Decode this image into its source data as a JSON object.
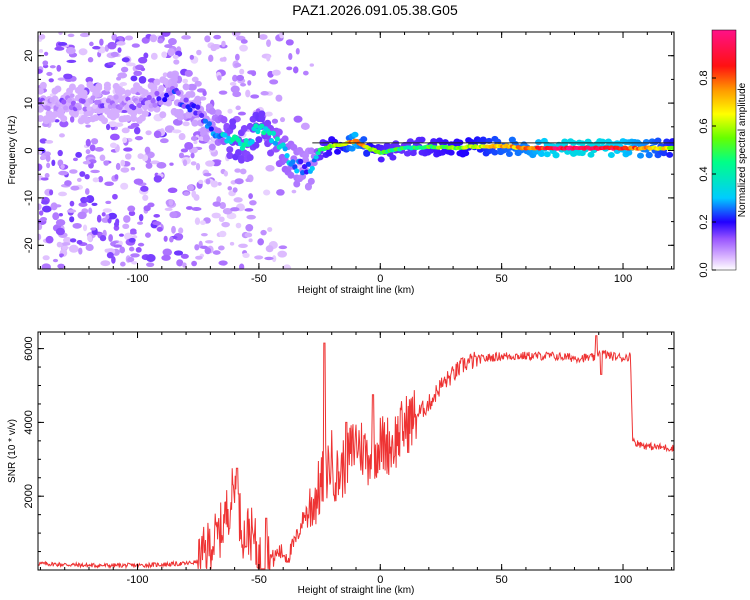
{
  "title": "PAZ1.2026.091.05.38.G05",
  "chart_data": [
    {
      "type": "heatmap",
      "xlabel": "Height of straight line (km)",
      "ylabel": "Frequency (Hz)",
      "xlim": [
        -141,
        121
      ],
      "ylim": [
        -25,
        25
      ],
      "xticks": [
        -100,
        -50,
        0,
        50,
        100
      ],
      "yticks": [
        -20,
        -10,
        0,
        10,
        20
      ],
      "colorbar": {
        "label": "Normalized spectral amplitude",
        "range": [
          0,
          1
        ],
        "ticks": [
          "0.0",
          "0.2",
          "0.4",
          "0.6",
          "0.8"
        ]
      },
      "line": {
        "name": "reference frequency",
        "x": [
          -28,
          121
        ],
        "y": [
          1.6,
          1.6
        ]
      },
      "ridge": {
        "x": [
          -100,
          -90,
          -85,
          -80,
          -75,
          -70,
          -65,
          -60,
          -55,
          -50,
          -45,
          -40,
          -35,
          -30,
          -27,
          -25,
          -20,
          -15,
          -10,
          -5,
          0,
          10,
          20,
          30,
          40,
          50,
          60,
          70,
          80,
          90,
          100,
          110,
          120
        ],
        "freq": [
          10,
          11,
          12,
          10,
          8,
          5,
          3,
          2,
          1,
          5,
          3,
          0,
          -3,
          -4,
          -2,
          0,
          1,
          1.4,
          2,
          0.5,
          -0.5,
          0.5,
          0.8,
          0.6,
          0.8,
          1,
          0.5,
          0.5,
          0.5,
          0.5,
          0.5,
          0.5,
          0.5
        ],
        "amplitude": [
          0.1,
          0.15,
          0.2,
          0.2,
          0.2,
          0.25,
          0.35,
          0.45,
          0.4,
          0.45,
          0.4,
          0.35,
          0.3,
          0.25,
          0.3,
          0.45,
          0.55,
          0.6,
          0.85,
          0.6,
          0.5,
          0.45,
          0.5,
          0.55,
          0.6,
          0.7,
          0.75,
          0.9,
          0.95,
          0.95,
          0.85,
          0.75,
          0.6
        ]
      }
    },
    {
      "type": "line",
      "xlabel": "Height of straight line (km)",
      "ylabel": "SNR (10 * v/v)",
      "xlim": [
        -141,
        121
      ],
      "ylim": [
        0,
        6450
      ],
      "xticks": [
        -100,
        -50,
        0,
        50,
        100
      ],
      "yticks": [
        2000,
        4000,
        6000
      ],
      "color": "#ee3333",
      "series": [
        {
          "name": "SNR",
          "x": [
            -141,
            -120,
            -100,
            -80,
            -75,
            -72,
            -70,
            -67,
            -65,
            -62,
            -60,
            -58,
            -56,
            -54,
            -52,
            -50,
            -48,
            -46,
            -44,
            -42,
            -40,
            -38,
            -36,
            -34,
            -32,
            -30,
            -28,
            -25,
            -22,
            -20,
            -18,
            -15,
            -12,
            -10,
            -5,
            0,
            5,
            10,
            15,
            20,
            25,
            30,
            35,
            40,
            50,
            60,
            70,
            80,
            85,
            88,
            90,
            95,
            100,
            103,
            104,
            105,
            110,
            121
          ],
          "y": [
            150,
            100,
            100,
            150,
            200,
            500,
            700,
            900,
            1200,
            1800,
            2300,
            1500,
            900,
            1100,
            800,
            300,
            200,
            350,
            250,
            450,
            400,
            300,
            600,
            900,
            1300,
            1600,
            1800,
            2200,
            2700,
            3000,
            2500,
            2800,
            3200,
            3500,
            3100,
            3400,
            3400,
            3900,
            4200,
            4500,
            5000,
            5300,
            5600,
            5700,
            5800,
            5800,
            5800,
            5750,
            5750,
            5750,
            5900,
            5800,
            5750,
            5800,
            3600,
            3450,
            3350,
            3300
          ],
          "spikes": [
            {
              "x": -59,
              "y": 2760
            },
            {
              "x": -47,
              "y": 1400
            },
            {
              "x": -23,
              "y": 6150
            },
            {
              "x": -14,
              "y": 4000
            },
            {
              "x": -3,
              "y": 4750
            },
            {
              "x": 89,
              "y": 6350
            },
            {
              "x": 91,
              "y": 5300
            }
          ]
        }
      ]
    }
  ]
}
